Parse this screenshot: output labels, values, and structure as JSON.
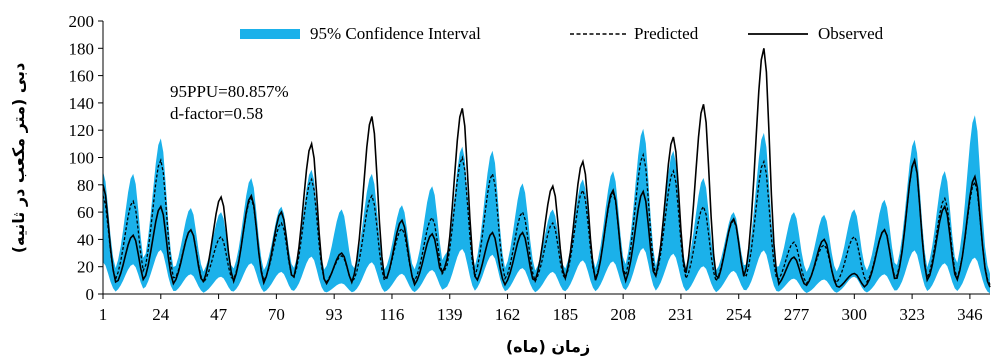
{
  "chart_data": {
    "type": "line",
    "xlabel": "زمان (ماه)",
    "ylabel": "دبی (متر مکعب در ثانیه)",
    "xlim": [
      1,
      354
    ],
    "ylim": [
      0,
      200
    ],
    "y_ticks": [
      0,
      20,
      40,
      60,
      80,
      100,
      120,
      140,
      160,
      180,
      200
    ],
    "x_ticks": [
      1,
      24,
      47,
      70,
      93,
      116,
      139,
      162,
      185,
      208,
      231,
      254,
      277,
      300,
      323,
      346
    ],
    "legend_position": "top",
    "grid": false,
    "annotations": [
      "95PPU=80.857%",
      "d-factor=0.58"
    ],
    "peaks": [
      {
        "x": 1,
        "upper": 90,
        "pred": 72,
        "obs": 80
      },
      {
        "x": 13,
        "upper": 88,
        "pred": 68,
        "obs": 43
      },
      {
        "x": 24,
        "upper": 114,
        "pred": 98,
        "obs": 64
      },
      {
        "x": 36,
        "upper": 63,
        "pred": 47,
        "obs": 47
      },
      {
        "x": 48,
        "upper": 60,
        "pred": 42,
        "obs": 71
      },
      {
        "x": 60,
        "upper": 85,
        "pred": 70,
        "obs": 72
      },
      {
        "x": 72,
        "upper": 64,
        "pred": 52,
        "obs": 60
      },
      {
        "x": 84,
        "upper": 91,
        "pred": 84,
        "obs": 110
      },
      {
        "x": 96,
        "upper": 62,
        "pred": 28,
        "obs": 30
      },
      {
        "x": 108,
        "upper": 88,
        "pred": 72,
        "obs": 130
      },
      {
        "x": 120,
        "upper": 65,
        "pred": 48,
        "obs": 54
      },
      {
        "x": 132,
        "upper": 79,
        "pred": 56,
        "obs": 44
      },
      {
        "x": 139,
        "upper": 32,
        "pred": 20,
        "obs": 23
      },
      {
        "x": 144,
        "upper": 108,
        "pred": 100,
        "obs": 136
      },
      {
        "x": 156,
        "upper": 105,
        "pred": 88,
        "obs": 45
      },
      {
        "x": 168,
        "upper": 81,
        "pred": 60,
        "obs": 45
      },
      {
        "x": 180,
        "upper": 62,
        "pred": 52,
        "obs": 79
      },
      {
        "x": 192,
        "upper": 84,
        "pred": 76,
        "obs": 97
      },
      {
        "x": 204,
        "upper": 90,
        "pred": 74,
        "obs": 76
      },
      {
        "x": 216,
        "upper": 121,
        "pred": 102,
        "obs": 75
      },
      {
        "x": 228,
        "upper": 105,
        "pred": 90,
        "obs": 115
      },
      {
        "x": 240,
        "upper": 85,
        "pred": 64,
        "obs": 139
      },
      {
        "x": 252,
        "upper": 60,
        "pred": 54,
        "obs": 55
      },
      {
        "x": 264,
        "upper": 118,
        "pred": 97,
        "obs": 180
      },
      {
        "x": 276,
        "upper": 60,
        "pred": 38,
        "obs": 27
      },
      {
        "x": 288,
        "upper": 58,
        "pred": 36,
        "obs": 40
      },
      {
        "x": 300,
        "upper": 62,
        "pred": 42,
        "obs": 15
      },
      {
        "x": 312,
        "upper": 69,
        "pred": 47,
        "obs": 47
      },
      {
        "x": 324,
        "upper": 113,
        "pred": 97,
        "obs": 98
      },
      {
        "x": 336,
        "upper": 90,
        "pred": 70,
        "obs": 64
      },
      {
        "x": 348,
        "upper": 131,
        "pred": 82,
        "obs": 86
      }
    ],
    "series": [
      {
        "name": "95% Confidence Interval",
        "type": "band",
        "color": "#1bb1ea"
      },
      {
        "name": "Predicted",
        "type": "line",
        "style": "dashed",
        "color": "#000000"
      },
      {
        "name": "Observed",
        "type": "line",
        "style": "solid",
        "color": "#000000"
      }
    ]
  }
}
